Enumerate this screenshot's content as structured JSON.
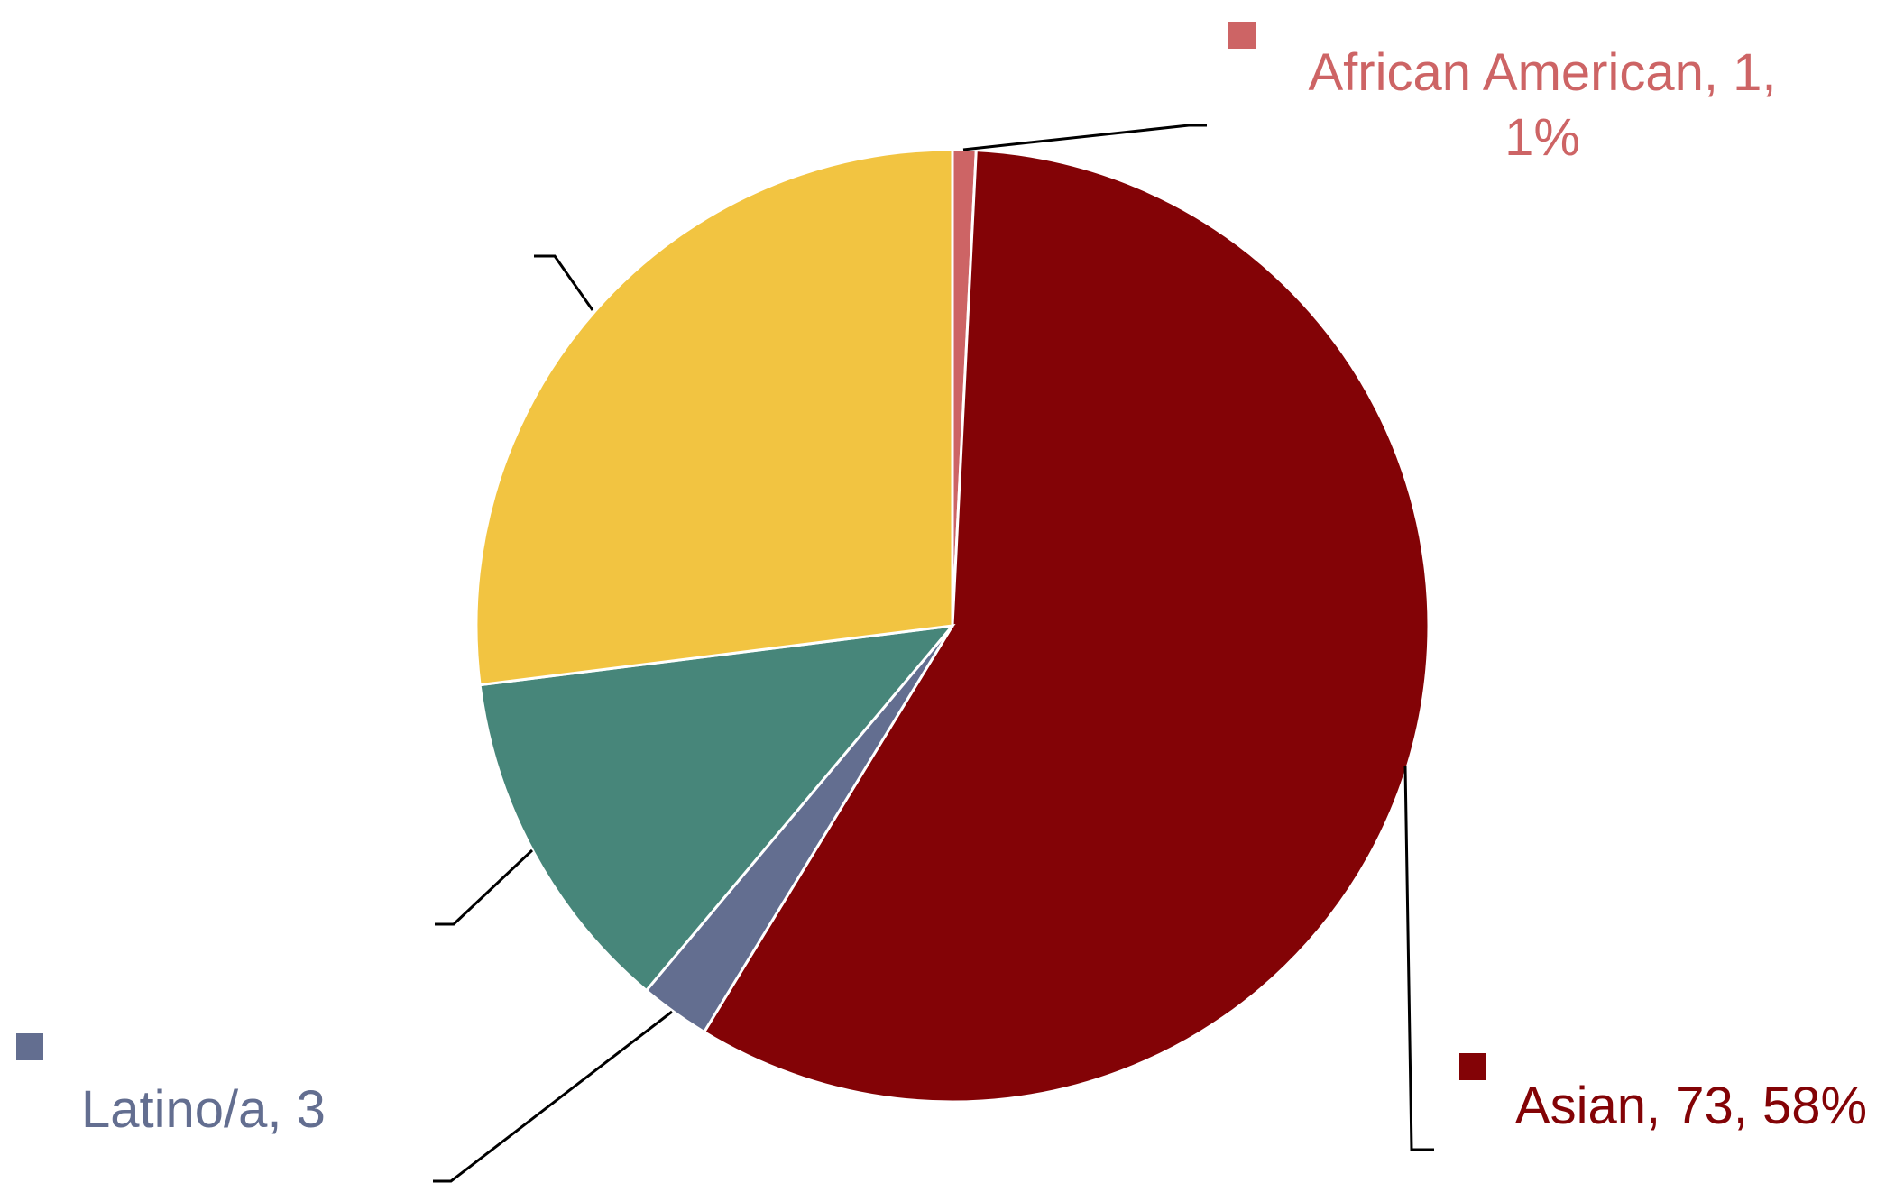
{
  "chart_data": {
    "type": "pie",
    "title": "",
    "slices": [
      {
        "label": "African American, 1,",
        "label_line2": "1%",
        "category": "African American",
        "value": 1,
        "percent": 1,
        "color": "#cd6465",
        "show_label": true
      },
      {
        "label": "Asian, 73, 58%",
        "category": "Asian",
        "value": 73,
        "percent": 58,
        "color": "#830306",
        "show_label": true
      },
      {
        "label": "Latino/a, 3",
        "category": "Latino/a",
        "value": 3,
        "percent": 2,
        "color": "#636e90",
        "show_label": true
      },
      {
        "label": "",
        "category": "",
        "value": 15,
        "percent": 12,
        "color": "#47867a",
        "show_label": false
      },
      {
        "label": "",
        "category": "",
        "value": 34,
        "percent": 27,
        "color": "#f2c441",
        "show_label": false
      }
    ]
  }
}
